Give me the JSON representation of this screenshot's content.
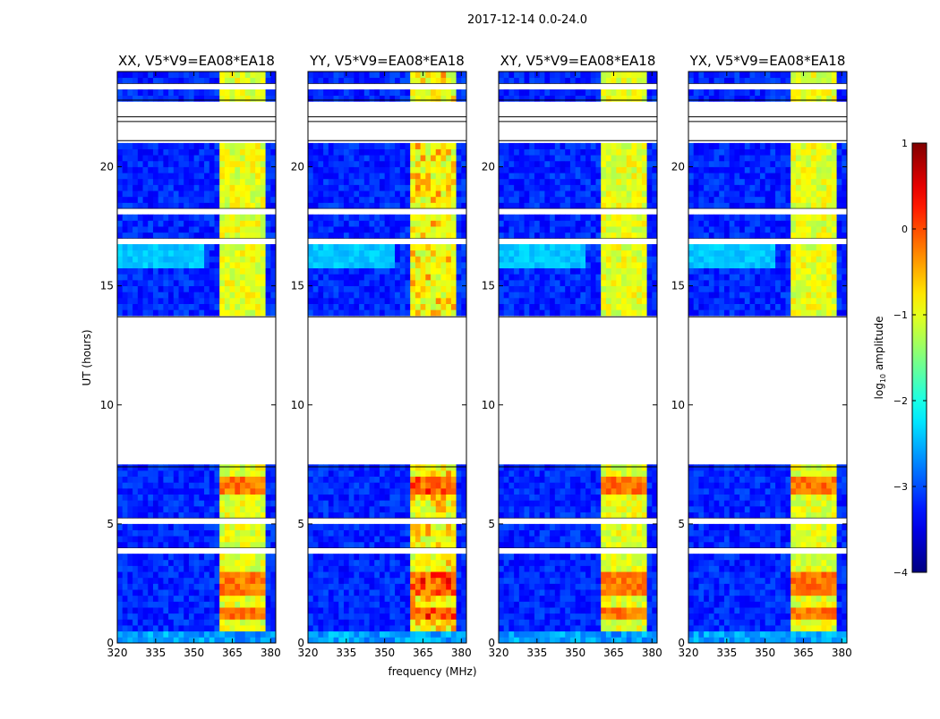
{
  "figure": {
    "suptitle": "2017-12-14 0.0-24.0"
  },
  "chart_data": {
    "type": "heatmap",
    "xlabel": "frequency (MHz)",
    "ylabel": "UT (hours)",
    "xlim": [
      320,
      382
    ],
    "ylim": [
      0,
      24
    ],
    "xticks": [
      320,
      335,
      350,
      365,
      380
    ],
    "yticks": [
      0,
      5,
      10,
      15,
      20
    ],
    "panels": [
      {
        "title": "XX, V5*V9=EA08*EA18",
        "variant": 0
      },
      {
        "title": "YY, V5*V9=EA08*EA18",
        "variant": 1
      },
      {
        "title": "XY, V5*V9=EA08*EA18",
        "variant": 2
      },
      {
        "title": "YX, V5*V9=EA08*EA18",
        "variant": 3
      }
    ],
    "colorbar": {
      "label_base": "log",
      "label_sub": "10",
      "label_rest": " amplitude",
      "ticks": [
        1,
        0,
        -1,
        -2,
        -3,
        -4
      ],
      "range": [
        -4,
        1
      ],
      "colormap": "jet"
    },
    "data_description": {
      "background_log_amp": -3.2,
      "band_start_mhz": 361,
      "band_end_mhz": 378,
      "strong_channels_mhz": [
        [
          361,
          365
        ],
        [
          365,
          369
        ],
        [
          370,
          373
        ],
        [
          374,
          378
        ]
      ],
      "band_log_amp": -1.0,
      "flagged_time_ranges_hours": [
        [
          7.4,
          13.7
        ],
        [
          21.1,
          21.9
        ],
        [
          22.1,
          22.8
        ]
      ],
      "bright_time_ranges_hours": [
        [
          2.1,
          2.9
        ],
        [
          0.9,
          1.4
        ],
        [
          6.2,
          6.9
        ]
      ]
    }
  }
}
